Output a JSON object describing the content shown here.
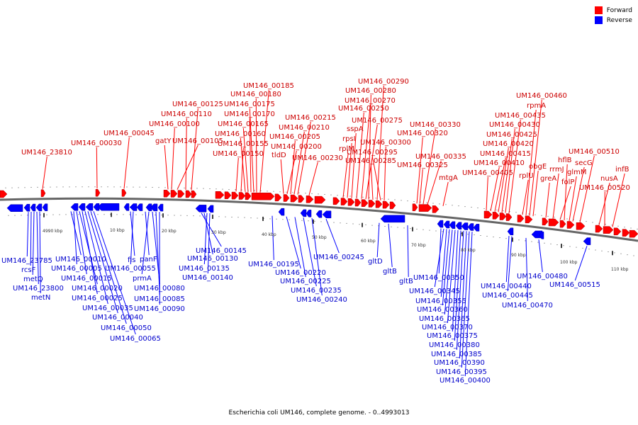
{
  "legend": {
    "forward": "Forward",
    "reverse": "Reverse"
  },
  "colors": {
    "forward": "#ff0000",
    "reverse": "#0000ff",
    "backbone": "#666666"
  },
  "caption": "Escherichia coli UM146, complete genome. - 0..4993013",
  "ticks": [
    "4990 kbp",
    "10 kbp",
    "20 kbp",
    "30 kbp",
    "40 kbp",
    "50 kbp",
    "60 kbp",
    "70 kbp",
    "80 kbp",
    "90 kbp",
    "100 kbp",
    "110 kbp"
  ],
  "forward_labels": [
    "UM146_23810",
    "UM146_00030",
    "UM146_00045",
    "gatY",
    "UM146_00100",
    "UM146_00105",
    "UM146_00110",
    "UM146_00125",
    "UM146_00150",
    "UM146_00155",
    "UM146_00160",
    "UM146_00165",
    "UM146_00170",
    "UM146_00175",
    "UM146_00180",
    "UM146_00185",
    "tldD",
    "UM146_00200",
    "UM146_00205",
    "UM146_00210",
    "UM146_00215",
    "UM146_00230",
    "rplM",
    "rpsI",
    "sspA",
    "UM146_00250",
    "UM146_00270",
    "UM146_00275",
    "UM146_00280",
    "UM146_00285",
    "UM146_00290",
    "UM146_00295",
    "UM146_00300",
    "UM146_00320",
    "UM146_00325",
    "UM146_00330",
    "UM146_00335",
    "mtgA",
    "UM146_00405",
    "UM146_00410",
    "UM146_00415",
    "UM146_00420",
    "UM146_00425",
    "UM146_00430",
    "UM146_00435",
    "rplU",
    "rpmA",
    "UM146_00460",
    "obgE",
    "greA",
    "rrmJ",
    "folP",
    "hflB",
    "glmM",
    "secG",
    "UM146_00510",
    "nusA",
    "UM146_00520",
    "infB"
  ],
  "reverse_labels": [
    "UM146_23785",
    "rcsF",
    "metQ",
    "UM146_23800",
    "metN",
    "UM146_00010",
    "UM146_00005",
    "UM146_00015",
    "UM146_00020",
    "UM146_00025",
    "UM146_00035",
    "UM146_00040",
    "UM146_00050",
    "UM146_00065",
    "fis",
    "UM146_00055",
    "panF",
    "prmA",
    "UM146_00080",
    "UM146_00085",
    "UM146_00090",
    "UM146_00145",
    "UM146_00130",
    "UM146_00135",
    "UM146_00140",
    "UM146_00195",
    "UM146_00220",
    "UM146_00225",
    "UM146_00235",
    "UM146_00240",
    "UM146_00245",
    "gltD",
    "gltB",
    "gltB",
    "UM146_00350",
    "UM146_00345",
    "UM146_00355",
    "UM146_00360",
    "UM146_00365",
    "UM146_00370",
    "UM146_00375",
    "UM146_00380",
    "UM146_00385",
    "UM146_00390",
    "UM146_00395",
    "UM146_00400",
    "UM146_00440",
    "UM146_00445",
    "UM146_00470",
    "UM146_00480",
    "UM146_00515"
  ]
}
